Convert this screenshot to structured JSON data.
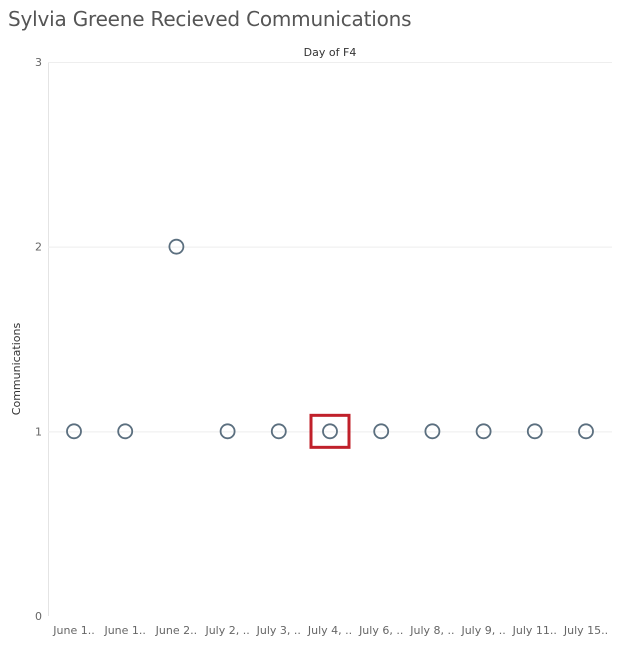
{
  "title": "Sylvia Greene Recieved Communications",
  "chart_data": {
    "type": "scatter",
    "column_header": "Day of F4",
    "ylabel": "Communications",
    "ylim": [
      0,
      3
    ],
    "yticks": [
      0,
      1,
      2,
      3
    ],
    "grid": true,
    "categories": [
      "June 1..",
      "June 1..",
      "June 2..",
      "July 2, ..",
      "July 3, ..",
      "July 4, ..",
      "July 6, ..",
      "July 8, ..",
      "July 9, ..",
      "July 11..",
      "July 15.."
    ],
    "series": [
      {
        "values": [
          1,
          1,
          2,
          1,
          1,
          1,
          1,
          1,
          1,
          1,
          1
        ]
      }
    ],
    "highlighted_index": 5,
    "colors": {
      "marker": "#5b6f7f",
      "highlight": "#c0202a",
      "grid": "#eeeeee"
    }
  }
}
